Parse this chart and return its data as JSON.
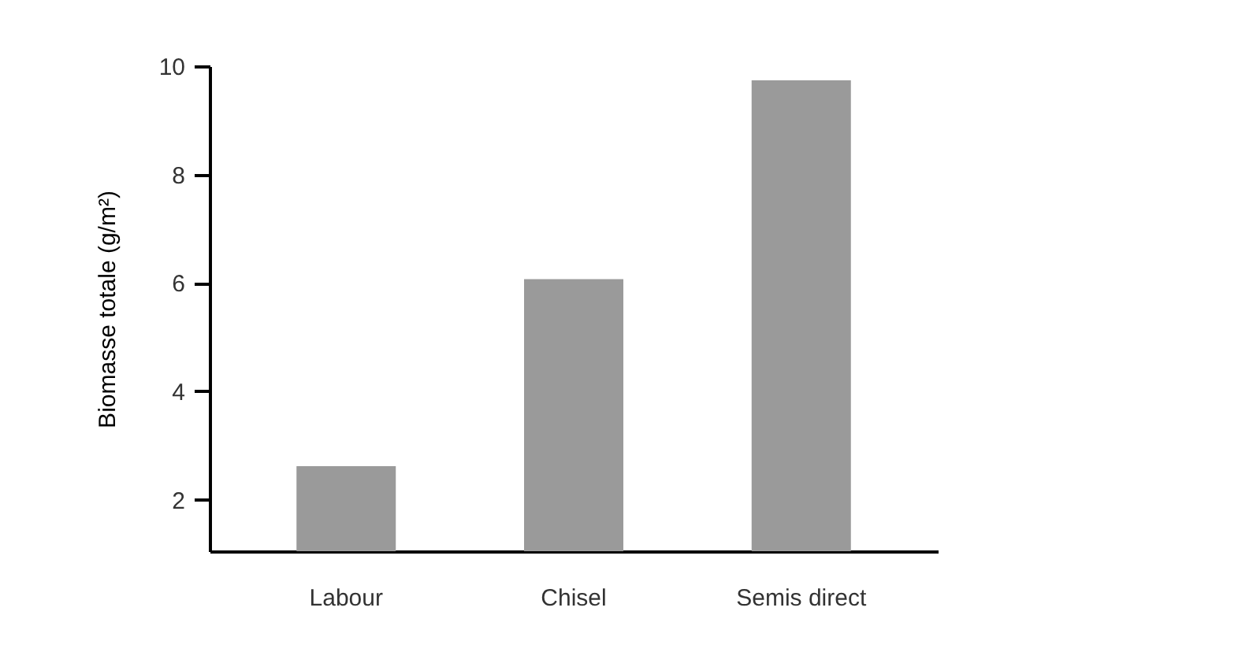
{
  "chart_data": {
    "type": "bar",
    "ylabel": "Biomasse totale (g/m²)",
    "categories": [
      "Labour",
      "Chisel",
      "Semis direct"
    ],
    "values": [
      2.62,
      6.07,
      9.74
    ],
    "color": "#9a9a9a",
    "ylim": [
      1.05,
      10
    ],
    "yticks": [
      2,
      4,
      6,
      8,
      10
    ],
    "grid": false
  }
}
